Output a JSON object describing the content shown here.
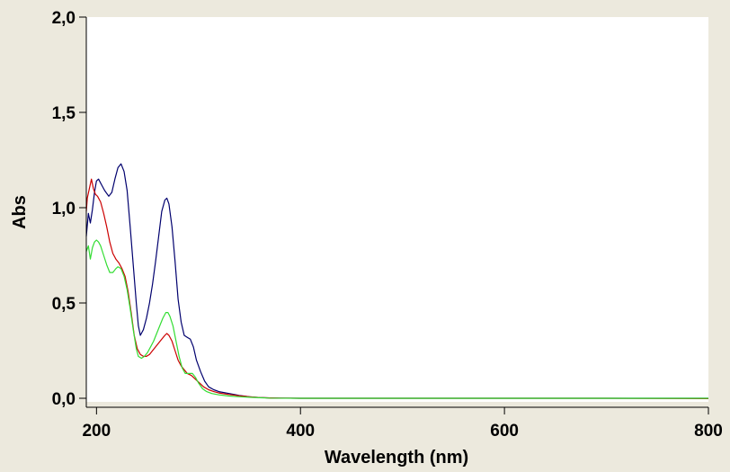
{
  "chart_data": {
    "type": "line",
    "title": "",
    "xlabel": "Wavelength (nm)",
    "ylabel": "Abs",
    "xlim": [
      190,
      800
    ],
    "ylim": [
      0.0,
      2.0
    ],
    "x_ticks": [
      200,
      400,
      600,
      800
    ],
    "x_tick_labels": [
      "200",
      "400",
      "600",
      "800"
    ],
    "y_ticks": [
      0.0,
      0.5,
      1.0,
      1.5,
      2.0
    ],
    "y_tick_labels": [
      "0,0",
      "0,5",
      "1,0",
      "1,5",
      "2,0"
    ],
    "grid": false,
    "legend": "none",
    "background": "#ECE9DD",
    "plot_background": "#FFFFFF",
    "series": [
      {
        "color": "#00006E",
        "points": [
          [
            190,
            0.85
          ],
          [
            192,
            0.97
          ],
          [
            194,
            0.92
          ],
          [
            196,
            0.99
          ],
          [
            198,
            1.08
          ],
          [
            200,
            1.14
          ],
          [
            202,
            1.15
          ],
          [
            205,
            1.12
          ],
          [
            208,
            1.09
          ],
          [
            212,
            1.06
          ],
          [
            215,
            1.08
          ],
          [
            218,
            1.15
          ],
          [
            221,
            1.21
          ],
          [
            224,
            1.23
          ],
          [
            227,
            1.19
          ],
          [
            230,
            1.09
          ],
          [
            233,
            0.9
          ],
          [
            236,
            0.7
          ],
          [
            239,
            0.5
          ],
          [
            241,
            0.38
          ],
          [
            243,
            0.33
          ],
          [
            246,
            0.36
          ],
          [
            249,
            0.42
          ],
          [
            252,
            0.5
          ],
          [
            255,
            0.6
          ],
          [
            258,
            0.72
          ],
          [
            261,
            0.85
          ],
          [
            264,
            0.98
          ],
          [
            267,
            1.04
          ],
          [
            269,
            1.05
          ],
          [
            271,
            1.02
          ],
          [
            274,
            0.9
          ],
          [
            277,
            0.72
          ],
          [
            280,
            0.52
          ],
          [
            283,
            0.4
          ],
          [
            286,
            0.33
          ],
          [
            289,
            0.32
          ],
          [
            292,
            0.31
          ],
          [
            295,
            0.27
          ],
          [
            298,
            0.2
          ],
          [
            302,
            0.14
          ],
          [
            306,
            0.09
          ],
          [
            310,
            0.06
          ],
          [
            315,
            0.045
          ],
          [
            320,
            0.035
          ],
          [
            330,
            0.025
          ],
          [
            340,
            0.015
          ],
          [
            350,
            0.008
          ],
          [
            360,
            0.004
          ],
          [
            370,
            0.002
          ],
          [
            380,
            0.001
          ],
          [
            400,
            0.0
          ],
          [
            500,
            0.0
          ],
          [
            600,
            0.0
          ],
          [
            700,
            0.0
          ],
          [
            800,
            0.0
          ]
        ]
      },
      {
        "color": "#CC0000",
        "points": [
          [
            190,
            0.98
          ],
          [
            191,
            1.05
          ],
          [
            193,
            1.1
          ],
          [
            195,
            1.15
          ],
          [
            197,
            1.1
          ],
          [
            199,
            1.07
          ],
          [
            201,
            1.06
          ],
          [
            204,
            1.03
          ],
          [
            207,
            0.97
          ],
          [
            210,
            0.9
          ],
          [
            213,
            0.82
          ],
          [
            216,
            0.76
          ],
          [
            219,
            0.73
          ],
          [
            222,
            0.71
          ],
          [
            225,
            0.68
          ],
          [
            228,
            0.64
          ],
          [
            231,
            0.56
          ],
          [
            234,
            0.45
          ],
          [
            237,
            0.33
          ],
          [
            240,
            0.26
          ],
          [
            243,
            0.23
          ],
          [
            246,
            0.22
          ],
          [
            249,
            0.22
          ],
          [
            252,
            0.23
          ],
          [
            255,
            0.25
          ],
          [
            258,
            0.27
          ],
          [
            261,
            0.29
          ],
          [
            264,
            0.31
          ],
          [
            267,
            0.33
          ],
          [
            269,
            0.34
          ],
          [
            271,
            0.33
          ],
          [
            274,
            0.3
          ],
          [
            277,
            0.25
          ],
          [
            280,
            0.2
          ],
          [
            283,
            0.17
          ],
          [
            286,
            0.15
          ],
          [
            289,
            0.13
          ],
          [
            293,
            0.12
          ],
          [
            297,
            0.1
          ],
          [
            301,
            0.08
          ],
          [
            305,
            0.06
          ],
          [
            310,
            0.045
          ],
          [
            315,
            0.035
          ],
          [
            320,
            0.028
          ],
          [
            330,
            0.02
          ],
          [
            340,
            0.013
          ],
          [
            350,
            0.008
          ],
          [
            360,
            0.004
          ],
          [
            370,
            0.002
          ],
          [
            380,
            0.001
          ],
          [
            400,
            0.0
          ],
          [
            500,
            0.0
          ],
          [
            600,
            0.0
          ],
          [
            700,
            0.0
          ],
          [
            800,
            -0.002
          ]
        ]
      },
      {
        "color": "#33DD33",
        "points": [
          [
            190,
            0.77
          ],
          [
            192,
            0.8
          ],
          [
            194,
            0.73
          ],
          [
            196,
            0.79
          ],
          [
            198,
            0.82
          ],
          [
            200,
            0.83
          ],
          [
            202,
            0.82
          ],
          [
            204,
            0.8
          ],
          [
            207,
            0.75
          ],
          [
            210,
            0.7
          ],
          [
            213,
            0.66
          ],
          [
            216,
            0.66
          ],
          [
            219,
            0.68
          ],
          [
            221,
            0.69
          ],
          [
            224,
            0.68
          ],
          [
            227,
            0.64
          ],
          [
            230,
            0.57
          ],
          [
            233,
            0.47
          ],
          [
            236,
            0.36
          ],
          [
            239,
            0.26
          ],
          [
            241,
            0.22
          ],
          [
            244,
            0.21
          ],
          [
            247,
            0.22
          ],
          [
            250,
            0.24
          ],
          [
            253,
            0.27
          ],
          [
            256,
            0.3
          ],
          [
            259,
            0.34
          ],
          [
            262,
            0.38
          ],
          [
            265,
            0.42
          ],
          [
            268,
            0.45
          ],
          [
            270,
            0.45
          ],
          [
            272,
            0.43
          ],
          [
            275,
            0.38
          ],
          [
            278,
            0.3
          ],
          [
            281,
            0.22
          ],
          [
            284,
            0.16
          ],
          [
            287,
            0.13
          ],
          [
            291,
            0.13
          ],
          [
            294,
            0.13
          ],
          [
            297,
            0.11
          ],
          [
            300,
            0.08
          ],
          [
            304,
            0.05
          ],
          [
            308,
            0.035
          ],
          [
            313,
            0.025
          ],
          [
            320,
            0.018
          ],
          [
            330,
            0.012
          ],
          [
            340,
            0.008
          ],
          [
            350,
            0.005
          ],
          [
            360,
            0.003
          ],
          [
            370,
            0.001
          ],
          [
            400,
            0.0
          ],
          [
            500,
            0.0
          ],
          [
            600,
            0.0
          ],
          [
            700,
            0.0
          ],
          [
            800,
            0.0
          ]
        ]
      }
    ]
  }
}
